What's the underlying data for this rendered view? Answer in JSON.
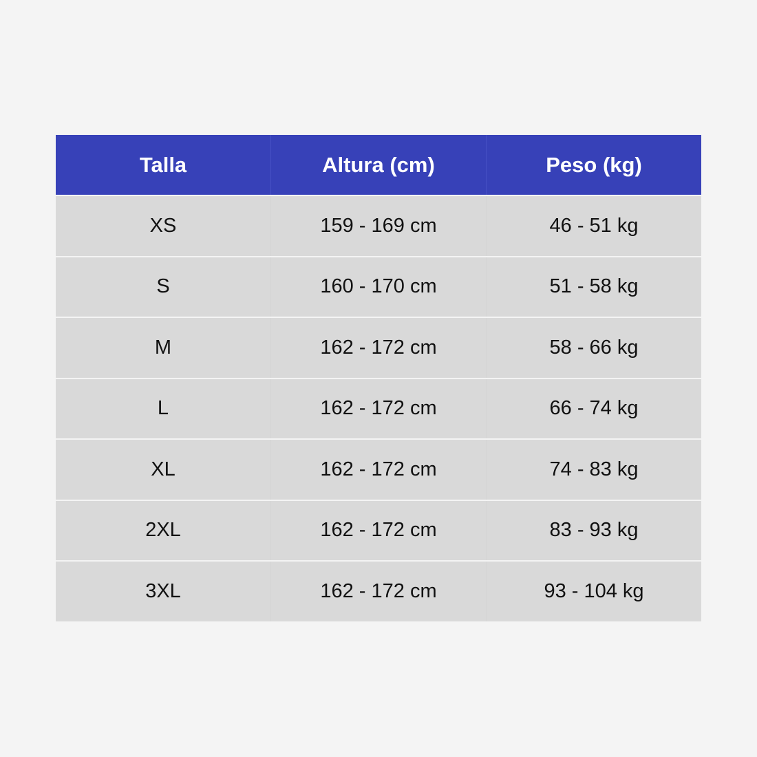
{
  "colors": {
    "header_bg": "#3741b8",
    "row_bg": "#d9d9d9",
    "page_bg": "#f4f4f4"
  },
  "headers": [
    "Talla",
    "Altura (cm)",
    "Peso (kg)"
  ],
  "rows": [
    [
      "XS",
      "159 - 169 cm",
      "46 - 51 kg"
    ],
    [
      "S",
      "160 - 170 cm",
      "51 - 58 kg"
    ],
    [
      "M",
      "162 - 172 cm",
      "58 - 66 kg"
    ],
    [
      "L",
      "162 - 172 cm",
      "66 - 74 kg"
    ],
    [
      "XL",
      "162 - 172 cm",
      "74 - 83 kg"
    ],
    [
      "2XL",
      "162 - 172 cm",
      "83 - 93 kg"
    ],
    [
      "3XL",
      "162 - 172 cm",
      "93 - 104 kg"
    ]
  ]
}
